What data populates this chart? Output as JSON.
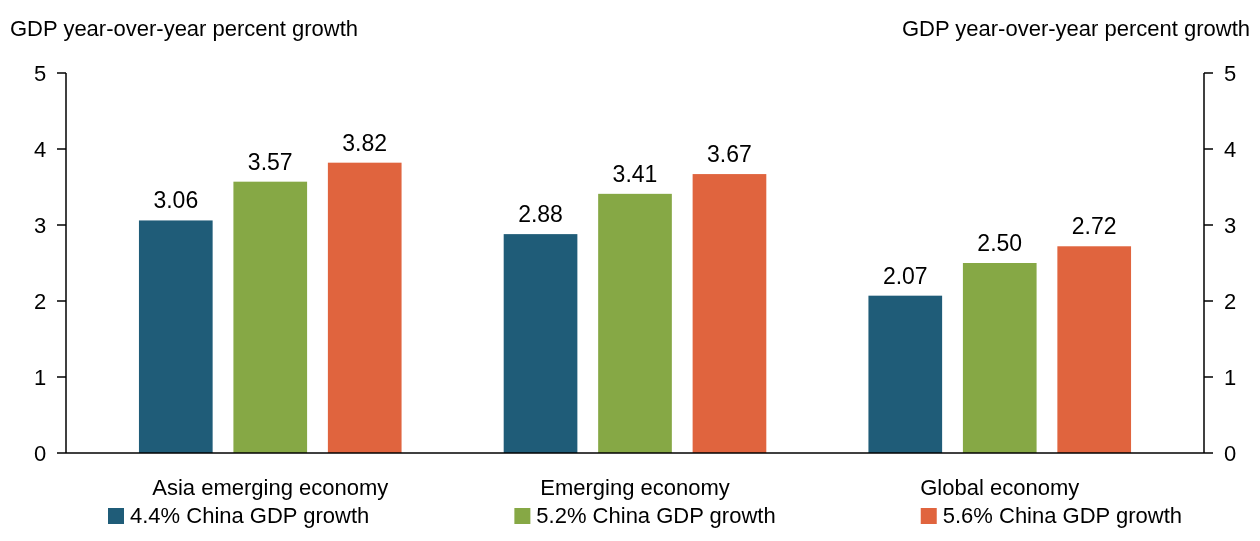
{
  "chart_data": {
    "type": "bar",
    "ylabel": "GDP year-over-year percent growth",
    "y2label": "GDP year-over-year percent growth",
    "categories": [
      "Asia emerging economy",
      "Emerging economy",
      "Global economy"
    ],
    "series": [
      {
        "name": "4.4% China GDP growth",
        "color": "#1f5c78",
        "values": [
          3.06,
          2.88,
          2.07
        ],
        "value_labels": [
          "3.06",
          "2.88",
          "2.07"
        ]
      },
      {
        "name": "5.2% China GDP growth",
        "color": "#86a845",
        "values": [
          3.57,
          3.41,
          2.5
        ],
        "value_labels": [
          "3.57",
          "3.41",
          "2.50"
        ]
      },
      {
        "name": "5.6% China GDP growth",
        "color": "#e0643e",
        "values": [
          3.82,
          3.67,
          2.72
        ],
        "value_labels": [
          "3.82",
          "3.67",
          "2.72"
        ]
      }
    ],
    "ylim": [
      0,
      5
    ],
    "yticks": [
      0,
      1,
      2,
      3,
      4,
      5
    ],
    "y2lim": [
      0,
      5
    ],
    "y2ticks": [
      0,
      1,
      2,
      3,
      4,
      5
    ],
    "grid": false,
    "legend": "bottom"
  }
}
